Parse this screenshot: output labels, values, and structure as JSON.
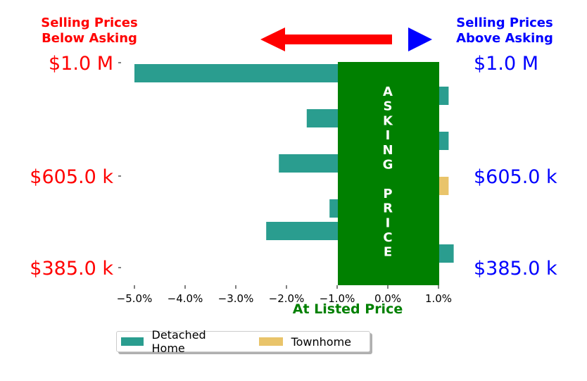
{
  "chart_data": {
    "type": "bar",
    "orientation": "horizontal",
    "title_left": [
      "Selling Prices",
      "Below Asking"
    ],
    "title_right": [
      "Selling Prices",
      "Above Asking"
    ],
    "center_label": "ASKING PRICE",
    "xlabel": "At Listed Price",
    "xlim": [
      -5.3,
      1.4
    ],
    "xticks": [
      -5.0,
      -4.0,
      -3.0,
      -2.0,
      -1.0,
      0.0,
      1.0
    ],
    "xtick_labels": [
      "−5.0%",
      "−4.0%",
      "−3.0%",
      "−2.0%",
      "−1.0%",
      "0.0%",
      "1.0%"
    ],
    "y_tick_labels": [
      "$1.0 M",
      "$605.0 k",
      "$385.0 k"
    ],
    "series": [
      {
        "name": "Detached Home",
        "color": "#2a9d8f",
        "bars": [
          {
            "level": 0.5,
            "value": -5.0
          },
          {
            "level": 1.5,
            "value": 1.2
          },
          {
            "level": 2.5,
            "value": -1.6
          },
          {
            "level": 3.5,
            "value": 1.2
          },
          {
            "level": 4.5,
            "value": -2.15
          },
          {
            "level": 6.5,
            "value": -1.15
          },
          {
            "level": 7.5,
            "value": -2.4
          },
          {
            "level": 8.5,
            "value": 1.3
          }
        ]
      },
      {
        "name": "Townhome",
        "color": "#e9c46a",
        "bars": [
          {
            "level": 5.5,
            "value": 1.2
          }
        ]
      }
    ],
    "legend": "lower-left",
    "colors": {
      "below": "#ff0000",
      "above": "#0000ff",
      "asking": "#008000"
    }
  }
}
